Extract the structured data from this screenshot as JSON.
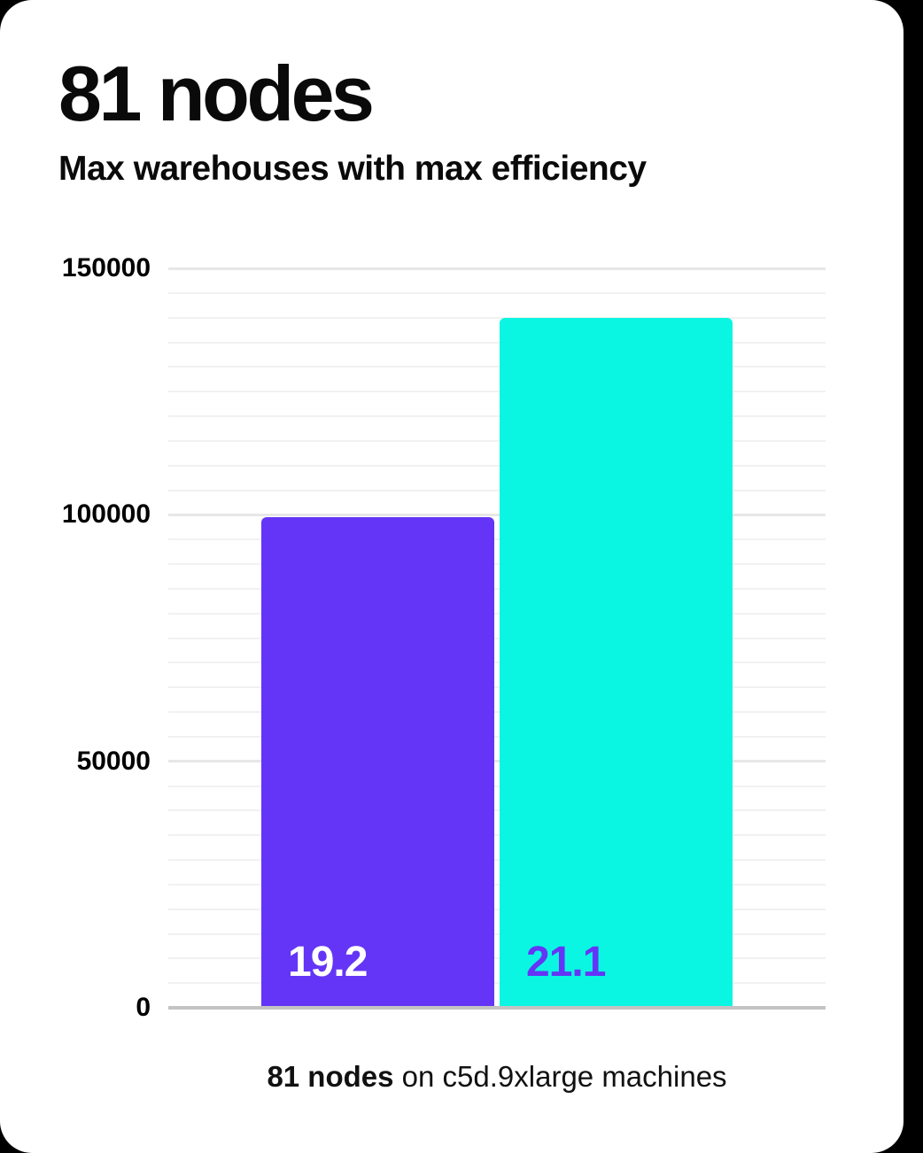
{
  "chart_data": {
    "type": "bar",
    "title": "81 nodes",
    "subtitle": "Max warehouses with max efficiency",
    "caption_bold": "81 nodes",
    "caption_rest": " on c5d.9xlarge machines",
    "categories": [
      "81 nodes on c5d.9xlarge machines"
    ],
    "series": [
      {
        "values": [
          99500
        ],
        "bar_label": "19.2",
        "color": "#6435f6",
        "label_color": "#ffffff"
      },
      {
        "values": [
          139900
        ],
        "bar_label": "21.1",
        "color": "#0bf6e2",
        "label_color": "#6435f6"
      }
    ],
    "ylim": [
      0,
      150000
    ],
    "y_ticks": [
      {
        "value": 0,
        "label": "0"
      },
      {
        "value": 50000,
        "label": "50000"
      },
      {
        "value": 100000,
        "label": "100000"
      },
      {
        "value": 150000,
        "label": "150000"
      }
    ],
    "minor_gridline_step": 5000,
    "major_gridline_step": 50000,
    "grid": true,
    "legend": "none",
    "colors": {
      "axis_line": "#c3c3c3",
      "major_gridline": "#e7e7e7",
      "minor_gridline": "#f1f1f1",
      "background": "#ffffff",
      "outer_background": "#000000"
    }
  }
}
